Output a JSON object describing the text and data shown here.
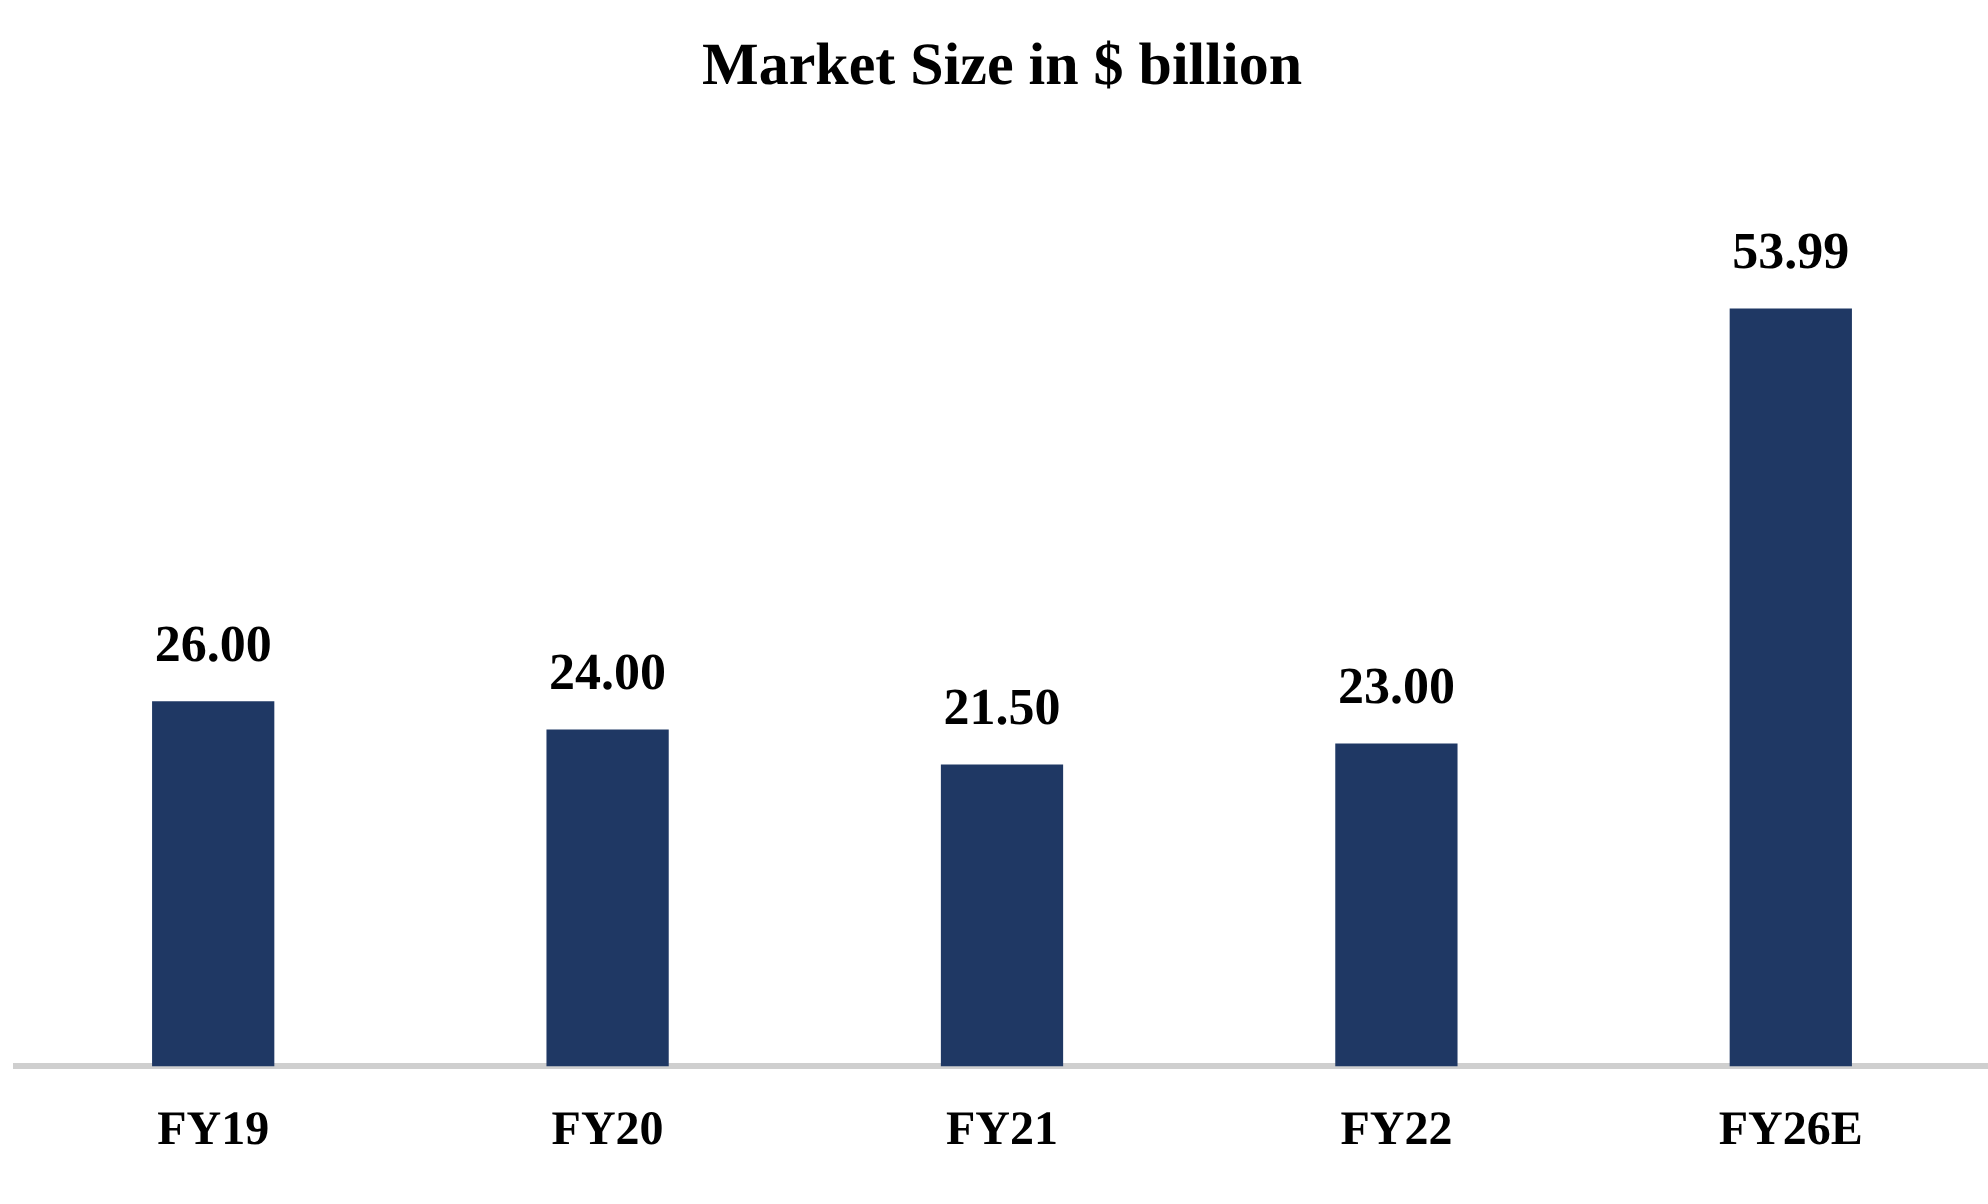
{
  "chart_data": {
    "type": "bar",
    "title": "Market Size in $ billion",
    "categories": [
      "FY19",
      "FY20",
      "FY21",
      "FY22",
      "FY26E"
    ],
    "values": [
      26.0,
      24.0,
      21.5,
      23.0,
      53.99
    ],
    "value_labels": [
      "26.00",
      "24.00",
      "21.50",
      "23.00",
      "53.99"
    ],
    "color": "#1f3864",
    "grid": false,
    "legend": false
  }
}
